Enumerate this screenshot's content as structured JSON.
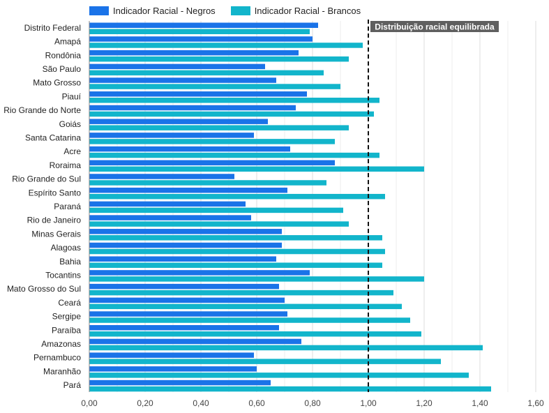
{
  "chart_data": {
    "type": "bar",
    "orientation": "horizontal",
    "categories": [
      "Distrito Federal",
      "Amapá",
      "Rondônia",
      "São Paulo",
      "Mato Grosso",
      "Piauí",
      "Rio Grande do Norte",
      "Goiás",
      "Santa Catarina",
      "Acre",
      "Roraima",
      "Rio Grande do Sul",
      "Espírito Santo",
      "Paraná",
      "Rio de Janeiro",
      "Minas Gerais",
      "Alagoas",
      "Bahia",
      "Tocantins",
      "Mato Grosso do Sul",
      "Ceará",
      "Sergipe",
      "Paraíba",
      "Amazonas",
      "Pernambuco",
      "Maranhão",
      "Pará"
    ],
    "series": [
      {
        "name": "Indicador Racial - Negros",
        "color": "#1a73e8",
        "values": [
          0.82,
          0.8,
          0.75,
          0.63,
          0.67,
          0.78,
          0.74,
          0.64,
          0.59,
          0.72,
          0.88,
          0.52,
          0.71,
          0.56,
          0.58,
          0.69,
          0.69,
          0.67,
          0.79,
          0.68,
          0.7,
          0.71,
          0.68,
          0.76,
          0.59,
          0.6,
          0.65
        ]
      },
      {
        "name": "Indicador Racial - Brancos",
        "color": "#12b5cb",
        "values": [
          0.79,
          0.98,
          0.93,
          0.84,
          0.9,
          1.04,
          1.02,
          0.93,
          0.88,
          1.04,
          1.2,
          0.85,
          1.06,
          0.91,
          0.93,
          1.05,
          1.06,
          1.05,
          1.2,
          1.09,
          1.12,
          1.15,
          1.19,
          1.41,
          1.26,
          1.36,
          1.44
        ]
      }
    ],
    "xlim": [
      0,
      1.6
    ],
    "xticks": [
      "0,00",
      "0,20",
      "0,40",
      "0,60",
      "0,80",
      "1,00",
      "1,20",
      "1,40",
      "1,60"
    ],
    "reference_line": {
      "value": 1.0,
      "label": "Distribuição racial equilibrada"
    },
    "legend_position": "top",
    "grid": true
  }
}
